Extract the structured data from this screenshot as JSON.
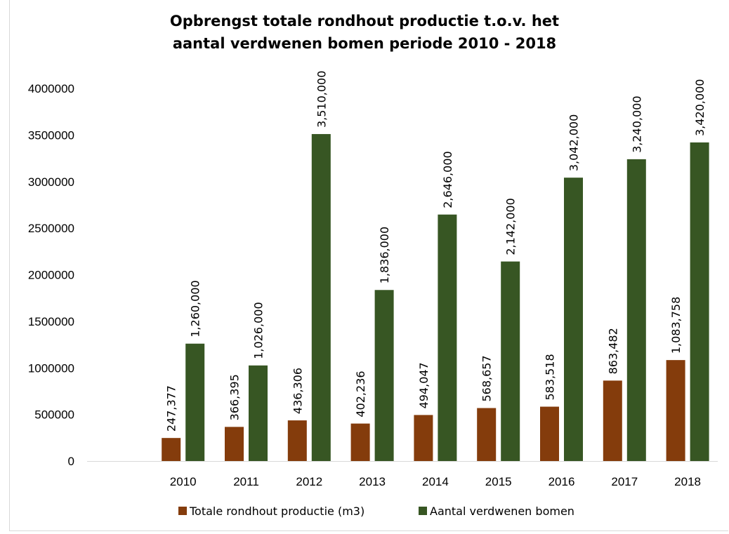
{
  "chart_data": {
    "type": "bar",
    "title_line1": "Opbrengst totale rondhout  productie t.o.v. het",
    "title_line2": "aantal verdwenen bomen periode 2010 - 2018",
    "categories": [
      "2010",
      "2011",
      "2012",
      "2013",
      "2014",
      "2015",
      "2016",
      "2017",
      "2018"
    ],
    "series": [
      {
        "name": "Totale rondhout productie (m3)",
        "color": "#843c0c",
        "values": [
          247377,
          366395,
          436306,
          402236,
          494047,
          568657,
          583518,
          863482,
          1083758
        ],
        "labels": [
          "247,377",
          "366,395",
          "436,306",
          "402,236",
          "494,047",
          "568,657",
          "583,518",
          "863,482",
          "1,083,758"
        ]
      },
      {
        "name": "Aantal verdwenen bomen",
        "color": "#375623",
        "values": [
          1260000,
          1026000,
          3510000,
          1836000,
          2646000,
          2142000,
          3042000,
          3240000,
          3420000
        ],
        "labels": [
          "1,260,000",
          "1,026,000",
          "3,510,000",
          "1,836,000",
          "2,646,000",
          "2,142,000",
          "3,042,000",
          "3,240,000",
          "3,420,000"
        ]
      }
    ],
    "yticks": [
      "0",
      "500000",
      "1000000",
      "1500000",
      "2000000",
      "2500000",
      "3000000",
      "3500000",
      "4000000"
    ],
    "ylim": [
      0,
      4000000
    ],
    "grid": false,
    "legend_position": "bottom"
  }
}
